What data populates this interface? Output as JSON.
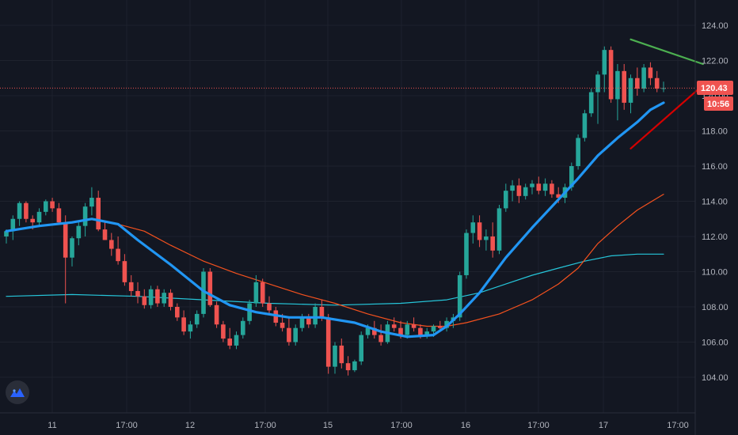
{
  "chart_data": {
    "type": "candlestick",
    "y_ticks": [
      "124.00",
      "122.00",
      "120.00",
      "118.00",
      "116.00",
      "114.00",
      "112.00",
      "110.00",
      "108.00",
      "106.00",
      "104.00"
    ],
    "x_ticks": [
      "11",
      "17:00",
      "12",
      "17:00",
      "15",
      "17:00",
      "16",
      "17:00",
      "17",
      "17:00"
    ],
    "ylim": [
      102.6,
      125.4
    ],
    "last_price": "120.43",
    "countdown": "10:56",
    "colors": {
      "up": "#26a69a",
      "down": "#ef5350",
      "ma_fast": "#2196f3",
      "ma_mid": "#f4511e",
      "ma_slow": "#26c6da",
      "trend_upper": "#4caf50",
      "trend_lower": "#d50000",
      "price_line": "#ef5350",
      "grid": "#1e222d"
    },
    "candles": [
      [
        112.0,
        112.4,
        111.6,
        112.3
      ],
      [
        112.3,
        113.2,
        111.8,
        113.0
      ],
      [
        113.0,
        114.0,
        112.6,
        113.9
      ],
      [
        113.9,
        114.0,
        112.8,
        113.0
      ],
      [
        113.0,
        113.2,
        112.4,
        112.8
      ],
      [
        112.8,
        113.6,
        112.6,
        113.4
      ],
      [
        113.4,
        114.1,
        113.2,
        114.0
      ],
      [
        114.0,
        114.2,
        113.4,
        113.6
      ],
      [
        113.6,
        113.9,
        112.7,
        112.8
      ],
      [
        112.8,
        113.2,
        108.2,
        110.8
      ],
      [
        110.8,
        112.0,
        110.3,
        111.9
      ],
      [
        111.9,
        112.8,
        111.5,
        112.6
      ],
      [
        112.6,
        113.9,
        112.0,
        113.7
      ],
      [
        113.7,
        114.8,
        113.2,
        114.2
      ],
      [
        114.2,
        114.6,
        112.3,
        112.4
      ],
      [
        112.4,
        112.8,
        111.8,
        111.8
      ],
      [
        111.8,
        112.2,
        110.9,
        111.3
      ],
      [
        111.3,
        112.0,
        110.4,
        110.6
      ],
      [
        110.6,
        111.0,
        109.2,
        109.4
      ],
      [
        109.4,
        109.8,
        108.6,
        108.9
      ],
      [
        108.9,
        109.4,
        108.2,
        108.6
      ],
      [
        108.6,
        109.0,
        107.9,
        108.1
      ],
      [
        108.1,
        109.2,
        107.9,
        109.0
      ],
      [
        109.0,
        109.2,
        108.0,
        108.2
      ],
      [
        108.2,
        109.0,
        108.0,
        108.8
      ],
      [
        108.8,
        109.0,
        107.8,
        108.0
      ],
      [
        108.0,
        108.2,
        107.2,
        107.4
      ],
      [
        107.4,
        107.8,
        106.4,
        106.6
      ],
      [
        106.6,
        107.2,
        106.2,
        107.0
      ],
      [
        107.0,
        107.8,
        106.8,
        107.6
      ],
      [
        107.6,
        110.2,
        107.4,
        110.0
      ],
      [
        110.0,
        110.2,
        108.0,
        108.1
      ],
      [
        108.1,
        108.3,
        106.8,
        107.0
      ],
      [
        107.0,
        107.2,
        106.0,
        106.2
      ],
      [
        106.2,
        106.8,
        105.6,
        105.8
      ],
      [
        105.8,
        106.6,
        105.6,
        106.4
      ],
      [
        106.4,
        107.4,
        106.2,
        107.2
      ],
      [
        107.2,
        108.4,
        107.0,
        108.2
      ],
      [
        108.2,
        109.8,
        108.0,
        109.4
      ],
      [
        109.4,
        109.6,
        108.0,
        108.2
      ],
      [
        108.2,
        108.6,
        107.6,
        107.8
      ],
      [
        107.8,
        108.0,
        106.9,
        107.1
      ],
      [
        107.1,
        107.6,
        106.6,
        106.8
      ],
      [
        106.8,
        107.4,
        105.8,
        106.0
      ],
      [
        106.0,
        107.0,
        105.8,
        106.8
      ],
      [
        106.8,
        107.6,
        106.6,
        107.4
      ],
      [
        107.4,
        107.6,
        106.8,
        107.0
      ],
      [
        107.0,
        108.2,
        106.8,
        108.0
      ],
      [
        108.0,
        108.4,
        107.2,
        107.4
      ],
      [
        107.4,
        107.6,
        104.2,
        104.6
      ],
      [
        104.6,
        106.0,
        104.2,
        105.8
      ],
      [
        105.8,
        106.2,
        104.5,
        104.8
      ],
      [
        104.8,
        105.2,
        104.1,
        104.4
      ],
      [
        104.4,
        105.0,
        104.3,
        104.9
      ],
      [
        104.9,
        106.6,
        104.7,
        106.4
      ],
      [
        106.4,
        107.0,
        106.2,
        106.8
      ],
      [
        106.8,
        107.2,
        106.2,
        106.4
      ],
      [
        106.4,
        107.0,
        105.8,
        106.0
      ],
      [
        106.0,
        107.2,
        105.9,
        107.0
      ],
      [
        107.0,
        107.4,
        106.6,
        106.8
      ],
      [
        106.8,
        107.2,
        106.2,
        106.4
      ],
      [
        106.4,
        107.2,
        106.2,
        107.0
      ],
      [
        107.0,
        107.4,
        106.6,
        106.8
      ],
      [
        106.8,
        107.0,
        106.2,
        106.4
      ],
      [
        106.4,
        106.8,
        106.2,
        106.6
      ],
      [
        106.6,
        107.0,
        106.3,
        106.9
      ],
      [
        106.9,
        107.2,
        106.6,
        106.8
      ],
      [
        106.8,
        107.4,
        106.6,
        107.2
      ],
      [
        107.2,
        107.6,
        106.8,
        107.4
      ],
      [
        107.4,
        110.0,
        107.2,
        109.8
      ],
      [
        109.8,
        112.4,
        109.6,
        112.2
      ],
      [
        112.2,
        113.2,
        111.6,
        112.8
      ],
      [
        112.8,
        113.2,
        111.4,
        111.8
      ],
      [
        111.8,
        112.4,
        111.2,
        112.0
      ],
      [
        112.0,
        112.8,
        110.8,
        111.2
      ],
      [
        111.2,
        113.8,
        111.0,
        113.6
      ],
      [
        113.6,
        115.0,
        113.4,
        114.6
      ],
      [
        114.6,
        115.2,
        114.0,
        114.9
      ],
      [
        114.9,
        115.3,
        113.9,
        114.3
      ],
      [
        114.3,
        115.0,
        114.1,
        114.8
      ],
      [
        114.8,
        115.2,
        114.4,
        115.0
      ],
      [
        115.0,
        115.4,
        114.4,
        114.6
      ],
      [
        114.6,
        115.3,
        114.3,
        115.0
      ],
      [
        115.0,
        115.2,
        114.2,
        114.4
      ],
      [
        114.4,
        114.8,
        113.9,
        114.2
      ],
      [
        114.2,
        115.0,
        113.9,
        114.8
      ],
      [
        114.8,
        116.2,
        114.6,
        116.0
      ],
      [
        116.0,
        117.8,
        115.8,
        117.6
      ],
      [
        117.6,
        119.2,
        117.4,
        119.0
      ],
      [
        119.0,
        120.4,
        118.8,
        120.2
      ],
      [
        120.2,
        121.4,
        118.4,
        121.2
      ],
      [
        121.2,
        122.8,
        120.2,
        122.6
      ],
      [
        122.6,
        122.8,
        119.6,
        119.8
      ],
      [
        119.8,
        121.8,
        118.6,
        121.4
      ],
      [
        121.4,
        121.8,
        119.2,
        119.6
      ],
      [
        119.6,
        121.2,
        119.0,
        121.0
      ],
      [
        121.0,
        121.6,
        120.0,
        120.4
      ],
      [
        120.4,
        121.8,
        120.2,
        121.6
      ],
      [
        121.6,
        121.9,
        120.6,
        121.0
      ],
      [
        121.0,
        121.4,
        120.2,
        120.4
      ],
      [
        120.4,
        120.8,
        120.2,
        120.43
      ]
    ],
    "ma_fast": [
      [
        0,
        112.3
      ],
      [
        5,
        112.6
      ],
      [
        10,
        112.8
      ],
      [
        13,
        113.0
      ],
      [
        17,
        112.7
      ],
      [
        20,
        111.8
      ],
      [
        25,
        110.4
      ],
      [
        30,
        108.9
      ],
      [
        34,
        108.1
      ],
      [
        38,
        107.7
      ],
      [
        43,
        107.4
      ],
      [
        48,
        107.4
      ],
      [
        53,
        107.1
      ],
      [
        57,
        106.6
      ],
      [
        61,
        106.3
      ],
      [
        65,
        106.4
      ],
      [
        67,
        106.9
      ],
      [
        69,
        107.6
      ],
      [
        72,
        108.8
      ],
      [
        76,
        110.8
      ],
      [
        80,
        112.5
      ],
      [
        84,
        114.1
      ],
      [
        87,
        115.3
      ],
      [
        90,
        116.6
      ],
      [
        93,
        117.6
      ],
      [
        96,
        118.5
      ],
      [
        98,
        119.2
      ],
      [
        100,
        119.6
      ]
    ],
    "ma_mid": [
      [
        13,
        113.0
      ],
      [
        17,
        112.7
      ],
      [
        21,
        112.3
      ],
      [
        25,
        111.5
      ],
      [
        30,
        110.6
      ],
      [
        35,
        109.9
      ],
      [
        40,
        109.3
      ],
      [
        45,
        108.7
      ],
      [
        50,
        108.2
      ],
      [
        55,
        107.6
      ],
      [
        60,
        107.1
      ],
      [
        64,
        106.9
      ],
      [
        67,
        106.9
      ],
      [
        70,
        107.1
      ],
      [
        75,
        107.6
      ],
      [
        80,
        108.4
      ],
      [
        84,
        109.3
      ],
      [
        87,
        110.2
      ],
      [
        90,
        111.6
      ],
      [
        93,
        112.6
      ],
      [
        96,
        113.5
      ],
      [
        100,
        114.4
      ]
    ],
    "ma_slow": [
      [
        0,
        108.6
      ],
      [
        10,
        108.7
      ],
      [
        20,
        108.6
      ],
      [
        30,
        108.4
      ],
      [
        40,
        108.2
      ],
      [
        50,
        108.1
      ],
      [
        60,
        108.2
      ],
      [
        67,
        108.4
      ],
      [
        72,
        108.8
      ],
      [
        76,
        109.3
      ],
      [
        80,
        109.8
      ],
      [
        84,
        110.2
      ],
      [
        88,
        110.6
      ],
      [
        92,
        110.9
      ],
      [
        96,
        111.0
      ],
      [
        100,
        111.0
      ]
    ],
    "trend_upper": [
      [
        95,
        123.2
      ],
      [
        106,
        121.8
      ]
    ],
    "trend_lower": [
      [
        95,
        117.0
      ],
      [
        106,
        120.6
      ]
    ]
  }
}
